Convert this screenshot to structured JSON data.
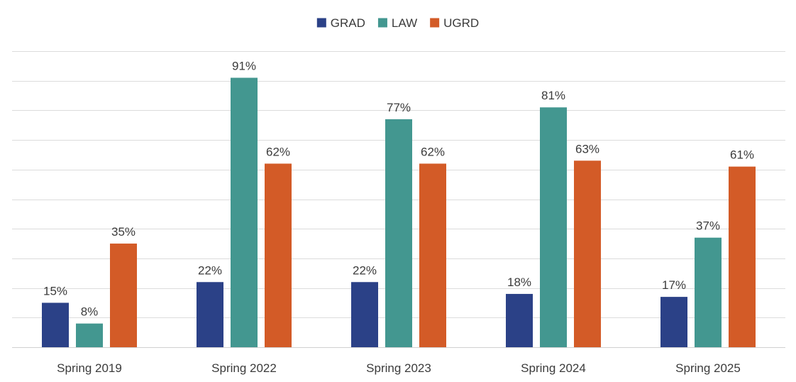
{
  "chart_data": {
    "type": "bar",
    "title": "",
    "xlabel": "",
    "ylabel": "",
    "ylim": [
      0,
      100
    ],
    "grid": true,
    "legend": "top-center",
    "label_suffix": "%",
    "categories": [
      "Spring 2019",
      "Spring 2022",
      "Spring 2023",
      "Spring 2024",
      "Spring 2025"
    ],
    "series": [
      {
        "name": "GRAD",
        "color": "#2b4187",
        "values": [
          15,
          22,
          22,
          18,
          17
        ]
      },
      {
        "name": "LAW",
        "color": "#439790",
        "values": [
          8,
          91,
          77,
          81,
          37
        ]
      },
      {
        "name": "UGRD",
        "color": "#d35b27",
        "values": [
          35,
          62,
          62,
          63,
          61
        ]
      }
    ]
  }
}
